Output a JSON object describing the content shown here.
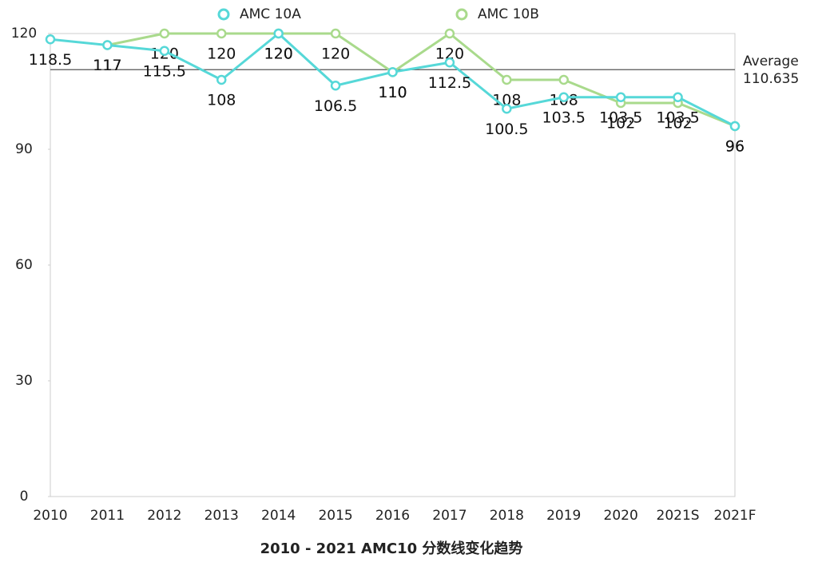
{
  "chart_data": {
    "type": "line",
    "title": "2010 - 2021 AMC10 分数线变化趋势",
    "categories": [
      "2010",
      "2011",
      "2012",
      "2013",
      "2014",
      "2015",
      "2016",
      "2017",
      "2018",
      "2019",
      "2020",
      "2021S",
      "2021F"
    ],
    "series": [
      {
        "name": "AMC 10A",
        "color": "#56d8d8",
        "values": [
          118.5,
          117,
          115.5,
          108,
          120,
          106.5,
          110,
          112.5,
          100.5,
          103.5,
          103.5,
          103.5,
          96
        ]
      },
      {
        "name": "AMC 10B",
        "color": "#a9da8c",
        "values": [
          null,
          117,
          120,
          120,
          120,
          120,
          110,
          120,
          108,
          108,
          102,
          102,
          96
        ]
      }
    ],
    "average": {
      "label": "Average",
      "value": 110.635
    },
    "ylim": [
      0,
      120
    ],
    "yticks": [
      0,
      30,
      60,
      90,
      120
    ],
    "grid": false
  }
}
